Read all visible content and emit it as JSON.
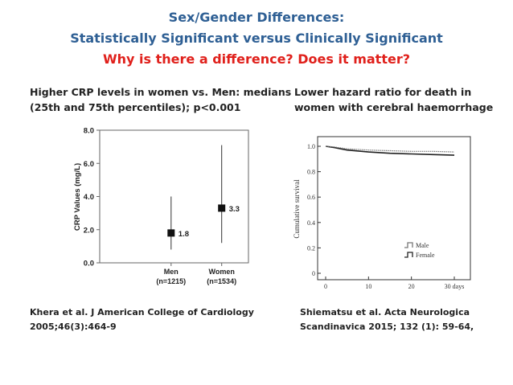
{
  "slide": {
    "title_line1": "Sex/Gender Differences:",
    "title_line2": "Statistically Significant versus Clinically Significant",
    "title_line3": "Why is there a difference? Does it matter?",
    "left_caption_line1": "Higher CRP levels in women vs. Men: medians",
    "left_caption_line2": "(25th and 75th percentiles); p<0.001",
    "right_caption_line1": "Lower hazard ratio for death in",
    "right_caption_line2": "women with cerebral haemorrhage",
    "left_ref_line1": "Khera et al. J American College of Cardiology",
    "left_ref_line2": "2005;46(3):464-9",
    "right_ref_line1": "Shiematsu et al. Acta Neurologica",
    "right_ref_line2": "Scandinavica 2015; 132 (1): 59-64,",
    "colors": {
      "title_blue": "#2e5f94",
      "title_red": "#e0201b"
    }
  },
  "chart_data": [
    {
      "type": "scatter",
      "title": "",
      "ylabel": "CRP Values (mg/L)",
      "ylim": [
        0,
        8
      ],
      "yticks": [
        "0.0",
        "2.0",
        "4.0",
        "6.0",
        "8.0"
      ],
      "yticks_values": [
        0,
        2,
        4,
        6,
        8
      ],
      "categories": [
        "Men",
        "Women"
      ],
      "category_sublabels": [
        "(n=1215)",
        "(n=1534)"
      ],
      "medians": [
        1.8,
        3.3
      ],
      "median_labels": [
        "1.8",
        "3.3"
      ],
      "p25": [
        0.8,
        1.2
      ],
      "p75": [
        4.0,
        7.1
      ]
    },
    {
      "type": "line",
      "ylabel": "Cumulative survival",
      "ylim": [
        0,
        1
      ],
      "yticks": [
        "0",
        "0.2",
        "0.4",
        "0.6",
        "0.8",
        "1.0"
      ],
      "yticks_values": [
        0,
        0.2,
        0.4,
        0.6,
        0.8,
        1.0
      ],
      "xlim": [
        0,
        30
      ],
      "xticks": [
        "0",
        "10",
        "20",
        "30 days"
      ],
      "xticks_values": [
        0,
        10,
        20,
        30
      ],
      "series": [
        {
          "name": "Male",
          "x": [
            0,
            2,
            5,
            10,
            15,
            20,
            25,
            30
          ],
          "values": [
            1.0,
            0.99,
            0.97,
            0.955,
            0.945,
            0.94,
            0.935,
            0.93
          ]
        },
        {
          "name": "Female",
          "x": [
            0,
            2,
            5,
            10,
            15,
            20,
            25,
            30
          ],
          "values": [
            1.0,
            0.995,
            0.98,
            0.97,
            0.965,
            0.96,
            0.96,
            0.955
          ]
        }
      ],
      "legend": [
        "Male",
        "Female"
      ],
      "legend_position": "bottom-right"
    }
  ]
}
